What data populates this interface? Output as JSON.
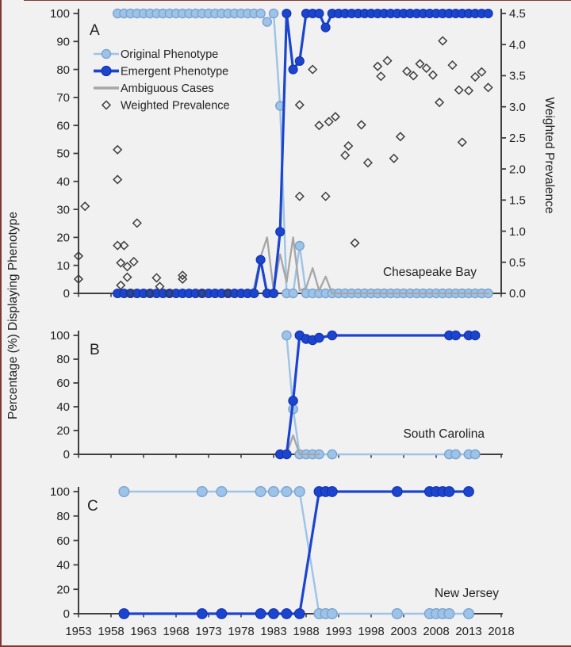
{
  "figure": {
    "y_axis_label": "Percentage (%) Displaying Phenotype",
    "right_axis_label": "Weighted Prevalence",
    "x_ticks": [
      1953,
      1958,
      1963,
      1968,
      1973,
      1978,
      1983,
      1988,
      1993,
      1998,
      2003,
      2008,
      2013,
      2018
    ],
    "x_range": [
      1953,
      2018
    ]
  },
  "legend": {
    "items": [
      {
        "label": "Original Phenotype",
        "marker": "circle-line",
        "color": "#9dc3e6"
      },
      {
        "label": "Emergent Phenotype",
        "marker": "circle-line",
        "color": "#1c45cf"
      },
      {
        "label": "Ambiguous Cases",
        "marker": "line",
        "color": "#a6a6a6"
      },
      {
        "label": "Weighted Prevalence",
        "marker": "open-diamond",
        "color": "#3d3d3d"
      }
    ]
  },
  "colors": {
    "original": "#9dc3e6",
    "original_edge": "#7ba3d3",
    "emergent": "#1c45cf",
    "emergent_edge": "#1130a8",
    "ambiguous": "#a6a6a6",
    "diamond": "#3d3d3d",
    "axis": "#3f3f3f",
    "background": "#f1f1f2"
  },
  "chart_data": [
    {
      "id": "A",
      "type": "line",
      "panel_label": "A",
      "region_label": "Chesapeake Bay",
      "ylim": [
        0,
        100
      ],
      "y_ticks": [
        0,
        10,
        20,
        30,
        40,
        50,
        60,
        70,
        80,
        90,
        100
      ],
      "xlim": [
        1953,
        2018
      ],
      "right_axis": {
        "label": "Weighted Prevalence",
        "range": [
          0,
          4.5
        ],
        "ticks": [
          0,
          0.5,
          1,
          1.5,
          2,
          2.5,
          3,
          3.5,
          4,
          4.5
        ]
      },
      "series": [
        {
          "name": "Original Phenotype",
          "runs": [
            [
              1959,
              1981,
              100
            ],
            [
              1982,
              1982,
              97
            ],
            [
              1983,
              1983,
              100
            ],
            [
              1984,
              1984,
              67
            ],
            [
              1985,
              1986,
              0
            ],
            [
              1987,
              1987,
              17
            ],
            [
              1988,
              2016,
              0
            ]
          ]
        },
        {
          "name": "Ambiguous Cases",
          "runs": [
            [
              1959,
              1979,
              0
            ],
            [
              1980,
              1980,
              2
            ],
            [
              1981,
              1981,
              13
            ],
            [
              1982,
              1982,
              20
            ],
            [
              1983,
              1983,
              1
            ],
            [
              1984,
              1984,
              14
            ],
            [
              1985,
              1985,
              4
            ],
            [
              1986,
              1986,
              20
            ],
            [
              1987,
              1987,
              1
            ],
            [
              1988,
              1988,
              2
            ],
            [
              1989,
              1989,
              9
            ],
            [
              1990,
              1990,
              1
            ],
            [
              1991,
              1991,
              6
            ],
            [
              1992,
              2016,
              0
            ]
          ]
        },
        {
          "name": "Emergent Phenotype",
          "runs": [
            [
              1959,
              1980,
              0
            ],
            [
              1981,
              1981,
              12
            ],
            [
              1982,
              1983,
              0
            ],
            [
              1984,
              1984,
              22
            ],
            [
              1985,
              1985,
              100
            ],
            [
              1986,
              1986,
              80
            ],
            [
              1987,
              1987,
              83
            ],
            [
              1988,
              1990,
              100
            ],
            [
              1991,
              1991,
              95
            ],
            [
              1992,
              2016,
              100
            ]
          ]
        }
      ],
      "scatter": {
        "name": "Weighted Prevalence",
        "axis": "right",
        "points": [
          [
            1953,
            0.6
          ],
          [
            1953,
            0.23
          ],
          [
            1954,
            1.4
          ],
          [
            1959,
            2.31
          ],
          [
            1959,
            1.83
          ],
          [
            1959,
            0.77
          ],
          [
            1960,
            0.77
          ],
          [
            1959.5,
            0.49
          ],
          [
            1960.5,
            0.43
          ],
          [
            1961.5,
            0.51
          ],
          [
            1960.5,
            0.26
          ],
          [
            1959.5,
            0.13
          ],
          [
            1962,
            1.13
          ],
          [
            1965,
            0.25
          ],
          [
            1965.5,
            0.11
          ],
          [
            1969,
            0.29
          ],
          [
            1969,
            0.23
          ],
          [
            1961,
            0
          ],
          [
            1964,
            0
          ],
          [
            1967,
            0
          ],
          [
            1972,
            0
          ],
          [
            1976,
            0
          ],
          [
            1987,
            1.56
          ],
          [
            1987,
            3.03
          ],
          [
            1989,
            3.6
          ],
          [
            1990,
            2.7
          ],
          [
            1991,
            1.56
          ],
          [
            1991.5,
            2.76
          ],
          [
            1992.5,
            2.84
          ],
          [
            1994,
            2.22
          ],
          [
            1994.5,
            2.37
          ],
          [
            1995.5,
            0.81
          ],
          [
            1996.5,
            2.71
          ],
          [
            1997.5,
            2.1
          ],
          [
            1999,
            3.65
          ],
          [
            1999.5,
            3.49
          ],
          [
            2000.5,
            3.74
          ],
          [
            2001.5,
            2.17
          ],
          [
            2002.5,
            2.52
          ],
          [
            2003.5,
            3.57
          ],
          [
            2004.5,
            3.5
          ],
          [
            2005.5,
            3.69
          ],
          [
            2006.5,
            3.62
          ],
          [
            2007.5,
            3.51
          ],
          [
            2008.5,
            3.07
          ],
          [
            2009,
            4.06
          ],
          [
            2010.5,
            3.67
          ],
          [
            2011.5,
            3.27
          ],
          [
            2012,
            2.43
          ],
          [
            2013,
            3.26
          ],
          [
            2014,
            3.48
          ],
          [
            2015,
            3.56
          ],
          [
            2016,
            3.31
          ]
        ]
      }
    },
    {
      "id": "B",
      "type": "line",
      "panel_label": "B",
      "region_label": "South Carolina",
      "ylim": [
        0,
        100
      ],
      "y_ticks": [
        0,
        20,
        40,
        60,
        80,
        100
      ],
      "xlim": [
        1953,
        2018
      ],
      "series": [
        {
          "name": "Original Phenotype",
          "points": [
            [
              1985,
              100
            ],
            [
              1986,
              38
            ],
            [
              1987,
              0
            ],
            [
              1988,
              0
            ],
            [
              1989,
              0
            ],
            [
              1990,
              0
            ],
            [
              1992,
              0
            ],
            [
              2010,
              0
            ],
            [
              2011,
              0
            ],
            [
              2013,
              0
            ],
            [
              2014,
              0
            ]
          ]
        },
        {
          "name": "Ambiguous Cases",
          "points": [
            [
              1985,
              0
            ],
            [
              1986,
              16
            ],
            [
              1987,
              0
            ],
            [
              1988,
              0
            ],
            [
              1990,
              0
            ]
          ],
          "nomarker": true
        },
        {
          "name": "Emergent Phenotype",
          "points": [
            [
              1984,
              0
            ],
            [
              1985,
              0
            ],
            [
              1986,
              45
            ],
            [
              1987,
              100
            ],
            [
              1988,
              97
            ],
            [
              1989,
              96
            ],
            [
              1990,
              98
            ],
            [
              1992,
              100
            ],
            [
              2010,
              100
            ],
            [
              2011,
              100
            ],
            [
              2013,
              100
            ],
            [
              2014,
              100
            ]
          ]
        }
      ]
    },
    {
      "id": "C",
      "type": "line",
      "panel_label": "C",
      "region_label": "New Jersey",
      "ylim": [
        0,
        100
      ],
      "y_ticks": [
        0,
        20,
        40,
        60,
        80,
        100
      ],
      "xlim": [
        1953,
        2018
      ],
      "series": [
        {
          "name": "Original Phenotype",
          "points": [
            [
              1960,
              100
            ],
            [
              1972,
              100
            ],
            [
              1975,
              100
            ],
            [
              1981,
              100
            ],
            [
              1983,
              100
            ],
            [
              1985,
              100
            ],
            [
              1987,
              100
            ],
            [
              1990,
              0
            ],
            [
              1991,
              0
            ],
            [
              1992,
              0
            ],
            [
              2002,
              0
            ],
            [
              2007,
              0
            ],
            [
              2008,
              0
            ],
            [
              2009,
              0
            ],
            [
              2010,
              0
            ],
            [
              2013,
              0
            ]
          ]
        },
        {
          "name": "Emergent Phenotype",
          "points": [
            [
              1960,
              0
            ],
            [
              1972,
              0
            ],
            [
              1975,
              0
            ],
            [
              1981,
              0
            ],
            [
              1983,
              0
            ],
            [
              1985,
              0
            ],
            [
              1987,
              0
            ],
            [
              1990,
              100
            ],
            [
              1991,
              100
            ],
            [
              1992,
              100
            ],
            [
              2002,
              100
            ],
            [
              2007,
              100
            ],
            [
              2008,
              100
            ],
            [
              2009,
              100
            ],
            [
              2010,
              100
            ],
            [
              2013,
              100
            ]
          ]
        }
      ]
    }
  ]
}
